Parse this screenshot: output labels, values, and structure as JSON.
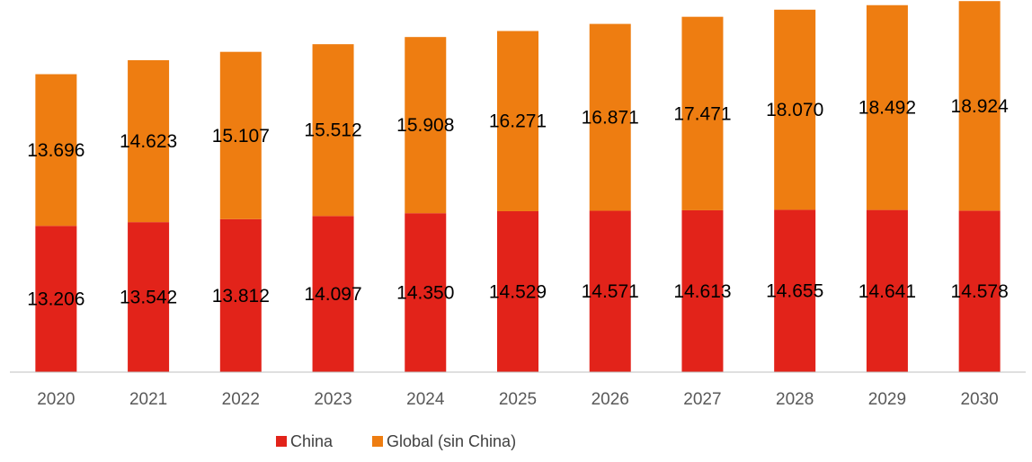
{
  "chart_data": {
    "type": "bar",
    "stacked": true,
    "title": "",
    "xlabel": "",
    "ylabel": "",
    "grid": false,
    "legend_position": "bottom",
    "categories": [
      "2020",
      "2021",
      "2022",
      "2023",
      "2024",
      "2025",
      "2026",
      "2027",
      "2028",
      "2029",
      "2030"
    ],
    "series": [
      {
        "name": "China",
        "color": "#e2231a",
        "values": [
          13.206,
          13.542,
          13.812,
          14.097,
          14.35,
          14.529,
          14.571,
          14.613,
          14.655,
          14.641,
          14.578
        ],
        "labels": [
          "13.206",
          "13.542",
          "13.812",
          "14.097",
          "14.350",
          "14.529",
          "14.571",
          "14.613",
          "14.655",
          "14.641",
          "14.578"
        ]
      },
      {
        "name": "Global (sin China)",
        "color": "#ee7d11",
        "values": [
          13.696,
          14.623,
          15.107,
          15.512,
          15.908,
          16.271,
          16.871,
          17.471,
          18.07,
          18.492,
          18.924
        ],
        "labels": [
          "13.696",
          "14.623",
          "15.107",
          "15.512",
          "15.908",
          "16.271",
          "16.871",
          "17.471",
          "18.070",
          "18.492",
          "18.924"
        ]
      }
    ],
    "ylim": [
      0,
      33.6
    ]
  }
}
